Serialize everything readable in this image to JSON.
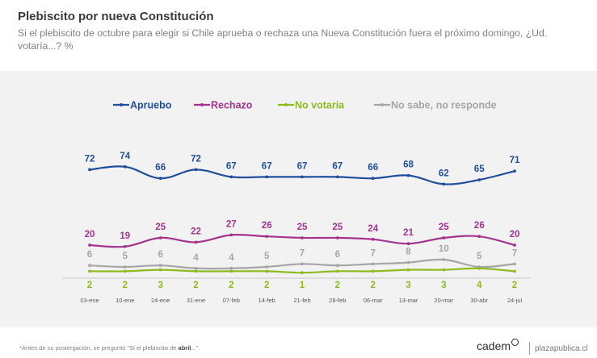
{
  "header": {
    "title": "Plebiscito por nueva Constitución",
    "subtitle": "Si el plebiscito de octubre para elegir si Chile aprueba o rechaza una Nueva Constitución fuera el próximo domingo, ¿Ud. votaría...? %"
  },
  "footer": {
    "note_prefix": "*Antes de su postergación, se preguntó \"Si el plebiscito de ",
    "note_bold": "abril",
    "note_suffix": "...\".",
    "brand": "cadem",
    "site": "plazapublica.cl"
  },
  "chart_data": {
    "type": "line",
    "title": "Plebiscito por nueva Constitución",
    "xlabel": "",
    "ylabel": "%",
    "ylim": [
      0,
      80
    ],
    "grid": false,
    "legend_position": "top",
    "categories": [
      "03-ene",
      "10-ene",
      "24-ene",
      "31-ene",
      "07-feb",
      "14-feb",
      "21-feb",
      "28-feb",
      "06-mar",
      "13-mar",
      "20-mar",
      "30-abr",
      "24-jul"
    ],
    "series": [
      {
        "name": "Apruebo",
        "color": "#1f4e9c",
        "values": [
          72,
          74,
          66,
          72,
          67,
          67,
          67,
          67,
          66,
          68,
          62,
          65,
          71
        ]
      },
      {
        "name": "Rechazo",
        "color": "#a3338f",
        "values": [
          20,
          19,
          25,
          22,
          27,
          26,
          25,
          25,
          24,
          21,
          25,
          26,
          20
        ]
      },
      {
        "name": "No votaría",
        "color": "#8dbb1f",
        "values": [
          2,
          2,
          3,
          2,
          2,
          2,
          1,
          2,
          2,
          3,
          3,
          4,
          2
        ]
      },
      {
        "name": "No sabe, no responde",
        "color": "#a6a6a6",
        "values": [
          6,
          5,
          6,
          4,
          4,
          5,
          7,
          6,
          7,
          8,
          10,
          5,
          7
        ]
      }
    ]
  }
}
